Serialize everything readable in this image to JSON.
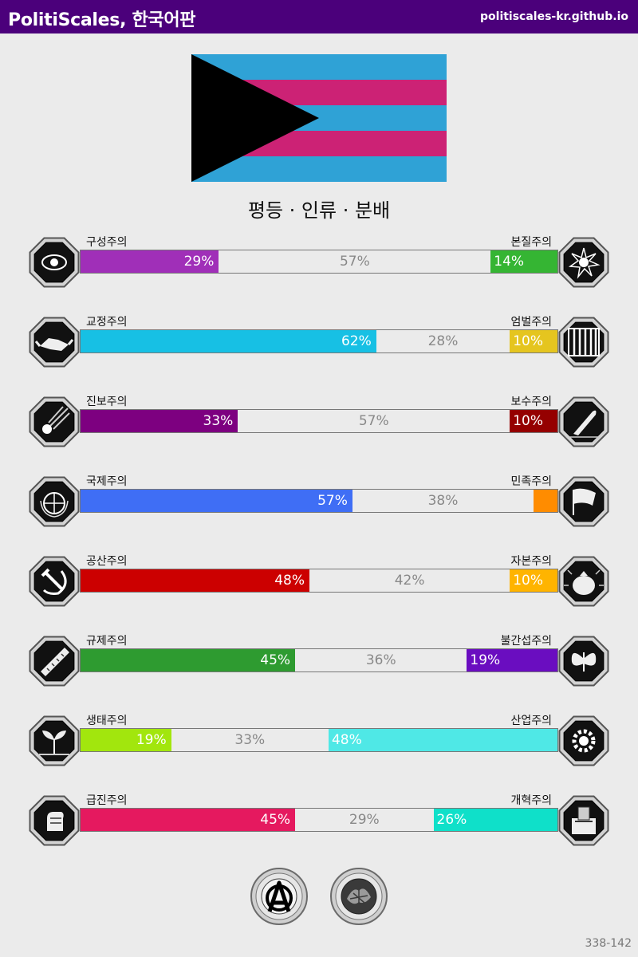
{
  "header": {
    "title": "PolitiScales, 한국어판",
    "url": "politiscales-kr.github.io"
  },
  "flag": {
    "colors": {
      "blue": "#2fa2d6",
      "pink": "#cc2275",
      "triangle": "#000000"
    }
  },
  "labels_title": "평등 · 인류 · 분배",
  "axes": [
    {
      "left": {
        "name": "구성주의",
        "value": 29,
        "pct": "29%",
        "color": "#a02fb8",
        "icon": "eye-icon"
      },
      "mid": {
        "value": 57,
        "pct": "57%"
      },
      "right": {
        "name": "본질주의",
        "value": 14,
        "pct": "14%",
        "color": "#35b533",
        "icon": "flower-icon"
      }
    },
    {
      "left": {
        "name": "교정주의",
        "value": 62,
        "pct": "62%",
        "color": "#17c0e4",
        "icon": "handshake-icon"
      },
      "mid": {
        "value": 28,
        "pct": "28%"
      },
      "right": {
        "name": "엄벌주의",
        "value": 10,
        "pct": "10%",
        "color": "#e5c51f",
        "icon": "prison-bars-icon"
      }
    },
    {
      "left": {
        "name": "진보주의",
        "value": 33,
        "pct": "33%",
        "color": "#7d0080",
        "icon": "comet-icon"
      },
      "mid": {
        "value": 57,
        "pct": "57%"
      },
      "right": {
        "name": "보수주의",
        "value": 10,
        "pct": "10%",
        "color": "#950000",
        "icon": "quill-icon"
      }
    },
    {
      "left": {
        "name": "국제주의",
        "value": 57,
        "pct": "57%",
        "color": "#3f6ef5",
        "icon": "globe-icon"
      },
      "mid": {
        "value": 38,
        "pct": "38%"
      },
      "right": {
        "name": "민족주의",
        "value": 5,
        "pct": "",
        "color": "#ff8c00",
        "icon": "flag-icon"
      }
    },
    {
      "left": {
        "name": "공산주의",
        "value": 48,
        "pct": "48%",
        "color": "#cc0000",
        "icon": "hammer-sickle-icon"
      },
      "mid": {
        "value": 42,
        "pct": "42%"
      },
      "right": {
        "name": "자본주의",
        "value": 10,
        "pct": "10%",
        "color": "#ffb400",
        "icon": "money-bag-icon"
      }
    },
    {
      "left": {
        "name": "규제주의",
        "value": 45,
        "pct": "45%",
        "color": "#2e9b30",
        "icon": "ruler-icon"
      },
      "mid": {
        "value": 36,
        "pct": "36%"
      },
      "right": {
        "name": "불간섭주의",
        "value": 19,
        "pct": "19%",
        "color": "#6a0dc0",
        "icon": "butterfly-icon"
      }
    },
    {
      "left": {
        "name": "생태주의",
        "value": 19,
        "pct": "19%",
        "color": "#a2e60d",
        "icon": "sprout-icon"
      },
      "mid": {
        "value": 33,
        "pct": "33%"
      },
      "right": {
        "name": "산업주의",
        "value": 48,
        "pct": "48%",
        "color": "#4fe8e6",
        "icon": "gear-icon"
      }
    },
    {
      "left": {
        "name": "급진주의",
        "value": 45,
        "pct": "45%",
        "color": "#e5195f",
        "icon": "fist-icon"
      },
      "mid": {
        "value": 29,
        "pct": "29%"
      },
      "right": {
        "name": "개혁주의",
        "value": 26,
        "pct": "26%",
        "color": "#0fe0c9",
        "icon": "ballot-box-icon"
      }
    }
  ],
  "badges": [
    {
      "icon": "anarchism-badge-icon"
    },
    {
      "icon": "pragmatism-badge-icon"
    }
  ],
  "version": "338-142"
}
